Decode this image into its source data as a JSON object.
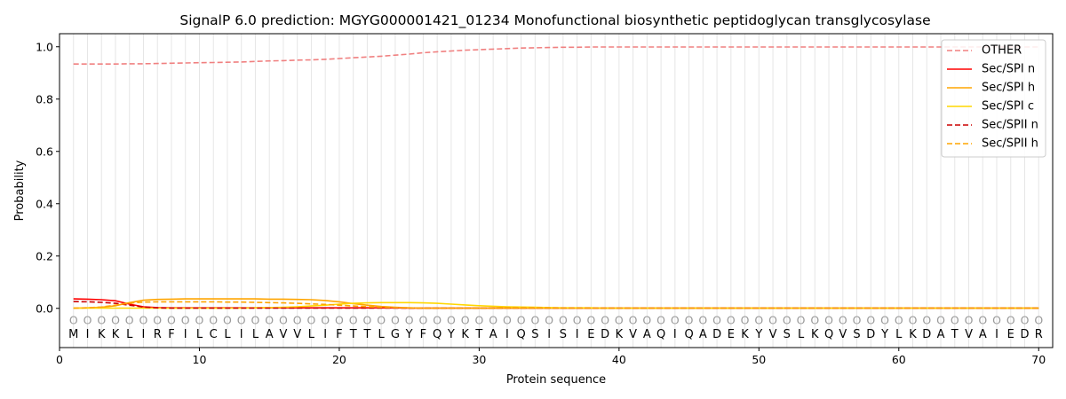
{
  "chart_data": {
    "type": "line",
    "title": "SignalP 6.0 prediction: MGYG000001421_01234 Monofunctional biosynthetic peptidoglycan transglycosylase",
    "xlabel": "Protein sequence",
    "ylabel": "Probability",
    "xlim": [
      0,
      71
    ],
    "ylim": [
      -0.15,
      1.05
    ],
    "xticks": [
      0,
      10,
      20,
      30,
      40,
      50,
      60,
      70
    ],
    "yticks": [
      0.0,
      0.2,
      0.4,
      0.6,
      0.8,
      1.0
    ],
    "ytick_labels": [
      "0.0",
      "0.2",
      "0.4",
      "0.6",
      "0.8",
      "1.0"
    ],
    "grid": "vertical lines at each residue",
    "legend_position": "top-right",
    "sequence": [
      "M",
      "I",
      "K",
      "K",
      "L",
      "I",
      "R",
      "F",
      "I",
      "L",
      "C",
      "L",
      "I",
      "L",
      "A",
      "V",
      "V",
      "L",
      "I",
      "F",
      "T",
      "T",
      "L",
      "G",
      "Y",
      "F",
      "Q",
      "Y",
      "K",
      "T",
      "A",
      "I",
      "Q",
      "S",
      "I",
      "S",
      "I",
      "E",
      "D",
      "K",
      "V",
      "A",
      "Q",
      "I",
      "Q",
      "A",
      "D",
      "E",
      "K",
      "Y",
      "V",
      "S",
      "L",
      "K",
      "Q",
      "V",
      "S",
      "D",
      "Y",
      "L",
      "K",
      "D",
      "A",
      "T",
      "V",
      "A",
      "I",
      "E",
      "D",
      "R"
    ],
    "region_marker": "O",
    "x": [
      1,
      2,
      3,
      4,
      5,
      6,
      7,
      8,
      9,
      10,
      11,
      12,
      13,
      14,
      15,
      16,
      17,
      18,
      19,
      20,
      21,
      22,
      23,
      24,
      25,
      26,
      27,
      28,
      29,
      30,
      31,
      32,
      33,
      34,
      35,
      36,
      37,
      38,
      39,
      40,
      41,
      42,
      43,
      44,
      45,
      46,
      47,
      48,
      49,
      50,
      51,
      52,
      53,
      54,
      55,
      56,
      57,
      58,
      59,
      60,
      61,
      62,
      63,
      64,
      65,
      66,
      67,
      68,
      69,
      70
    ],
    "series": [
      {
        "name": "OTHER",
        "color": "#f08080",
        "dash": true,
        "values": [
          0.934,
          0.934,
          0.934,
          0.934,
          0.935,
          0.935,
          0.936,
          0.937,
          0.938,
          0.939,
          0.94,
          0.941,
          0.942,
          0.944,
          0.946,
          0.947,
          0.949,
          0.95,
          0.952,
          0.955,
          0.958,
          0.961,
          0.964,
          0.968,
          0.972,
          0.977,
          0.981,
          0.984,
          0.987,
          0.989,
          0.991,
          0.993,
          0.995,
          0.996,
          0.997,
          0.998,
          0.998,
          0.999,
          0.999,
          0.999,
          0.999,
          0.999,
          0.999,
          0.999,
          0.999,
          0.999,
          0.999,
          0.999,
          0.999,
          0.999,
          0.999,
          0.999,
          0.999,
          0.999,
          0.999,
          0.999,
          0.999,
          0.999,
          0.999,
          0.999,
          0.999,
          0.999,
          0.999,
          0.999,
          0.999,
          0.999,
          0.999,
          0.999,
          0.999,
          0.999
        ]
      },
      {
        "name": "Sec/SPI n",
        "color": "#ff0000",
        "dash": false,
        "values": [
          0.036,
          0.035,
          0.033,
          0.029,
          0.016,
          0.006,
          0.003,
          0.002,
          0.002,
          0.002,
          0.002,
          0.002,
          0.002,
          0.002,
          0.002,
          0.002,
          0.002,
          0.002,
          0.002,
          0.002,
          0.002,
          0.002,
          0.002,
          0.002,
          0.001,
          0.001,
          0.001,
          0.001,
          0.001,
          0.001,
          0.001,
          0.001,
          0.001,
          0.001,
          0.001,
          0.001,
          0.001,
          0.001,
          0.001,
          0.001,
          0.001,
          0.001,
          0.001,
          0.001,
          0.001,
          0.001,
          0.001,
          0.001,
          0.001,
          0.001,
          0.001,
          0.001,
          0.001,
          0.001,
          0.001,
          0.001,
          0.001,
          0.001,
          0.001,
          0.001,
          0.001,
          0.001,
          0.001,
          0.001,
          0.001,
          0.001,
          0.001,
          0.001,
          0.001,
          0.001
        ]
      },
      {
        "name": "Sec/SPI h",
        "color": "#ffa500",
        "dash": false,
        "values": [
          0.001,
          0.002,
          0.004,
          0.01,
          0.022,
          0.031,
          0.034,
          0.035,
          0.036,
          0.036,
          0.036,
          0.036,
          0.036,
          0.036,
          0.035,
          0.035,
          0.034,
          0.033,
          0.03,
          0.025,
          0.018,
          0.012,
          0.007,
          0.004,
          0.002,
          0.001,
          0.001,
          0.001,
          0.001,
          0.001,
          0.001,
          0.001,
          0.001,
          0.001,
          0.001,
          0.001,
          0.001,
          0.001,
          0.001,
          0.001,
          0.001,
          0.001,
          0.001,
          0.001,
          0.001,
          0.001,
          0.001,
          0.001,
          0.001,
          0.001,
          0.001,
          0.001,
          0.001,
          0.001,
          0.001,
          0.001,
          0.001,
          0.001,
          0.001,
          0.001,
          0.001,
          0.001,
          0.001,
          0.001,
          0.001,
          0.001,
          0.001,
          0.001,
          0.001,
          0.001
        ]
      },
      {
        "name": "Sec/SPI c",
        "color": "#ffd700",
        "dash": false,
        "values": [
          0.001,
          0.001,
          0.001,
          0.001,
          0.001,
          0.001,
          0.001,
          0.001,
          0.001,
          0.001,
          0.001,
          0.001,
          0.001,
          0.002,
          0.003,
          0.004,
          0.006,
          0.009,
          0.012,
          0.016,
          0.019,
          0.021,
          0.022,
          0.022,
          0.022,
          0.021,
          0.019,
          0.016,
          0.013,
          0.01,
          0.008,
          0.006,
          0.005,
          0.004,
          0.003,
          0.002,
          0.002,
          0.002,
          0.001,
          0.001,
          0.001,
          0.001,
          0.001,
          0.001,
          0.001,
          0.001,
          0.001,
          0.001,
          0.001,
          0.001,
          0.001,
          0.001,
          0.001,
          0.001,
          0.001,
          0.001,
          0.001,
          0.001,
          0.001,
          0.001,
          0.001,
          0.001,
          0.001,
          0.001,
          0.001,
          0.001,
          0.001,
          0.001,
          0.001,
          0.001
        ]
      },
      {
        "name": "Sec/SPII n",
        "color": "#cc0000",
        "dash": true,
        "values": [
          0.026,
          0.025,
          0.023,
          0.019,
          0.012,
          0.005,
          0.002,
          0.001,
          0.001,
          0.001,
          0.001,
          0.001,
          0.001,
          0.001,
          0.001,
          0.001,
          0.001,
          0.001,
          0.001,
          0.001,
          0.001,
          0.001,
          0.001,
          0.001,
          0.001,
          0.001,
          0.001,
          0.001,
          0.001,
          0.001,
          0.001,
          0.001,
          0.001,
          0.001,
          0.001,
          0.001,
          0.001,
          0.001,
          0.001,
          0.001,
          0.001,
          0.001,
          0.001,
          0.001,
          0.001,
          0.001,
          0.001,
          0.001,
          0.001,
          0.001,
          0.001,
          0.001,
          0.001,
          0.001,
          0.001,
          0.001,
          0.001,
          0.001,
          0.001,
          0.001,
          0.001,
          0.001,
          0.001,
          0.001,
          0.001,
          0.001,
          0.001,
          0.001,
          0.001,
          0.001
        ]
      },
      {
        "name": "Sec/SPII h",
        "color": "#ffa500",
        "dash": true,
        "values": [
          0.001,
          0.002,
          0.005,
          0.012,
          0.02,
          0.024,
          0.025,
          0.025,
          0.025,
          0.025,
          0.025,
          0.024,
          0.024,
          0.023,
          0.022,
          0.021,
          0.019,
          0.017,
          0.015,
          0.012,
          0.009,
          0.006,
          0.004,
          0.003,
          0.002,
          0.001,
          0.001,
          0.001,
          0.001,
          0.001,
          0.001,
          0.001,
          0.001,
          0.001,
          0.001,
          0.001,
          0.001,
          0.001,
          0.001,
          0.001,
          0.001,
          0.001,
          0.001,
          0.001,
          0.001,
          0.001,
          0.001,
          0.001,
          0.001,
          0.001,
          0.001,
          0.001,
          0.001,
          0.001,
          0.001,
          0.001,
          0.001,
          0.001,
          0.001,
          0.001,
          0.001,
          0.001,
          0.001,
          0.001,
          0.001,
          0.001,
          0.001,
          0.001,
          0.001,
          0.001
        ]
      }
    ]
  }
}
